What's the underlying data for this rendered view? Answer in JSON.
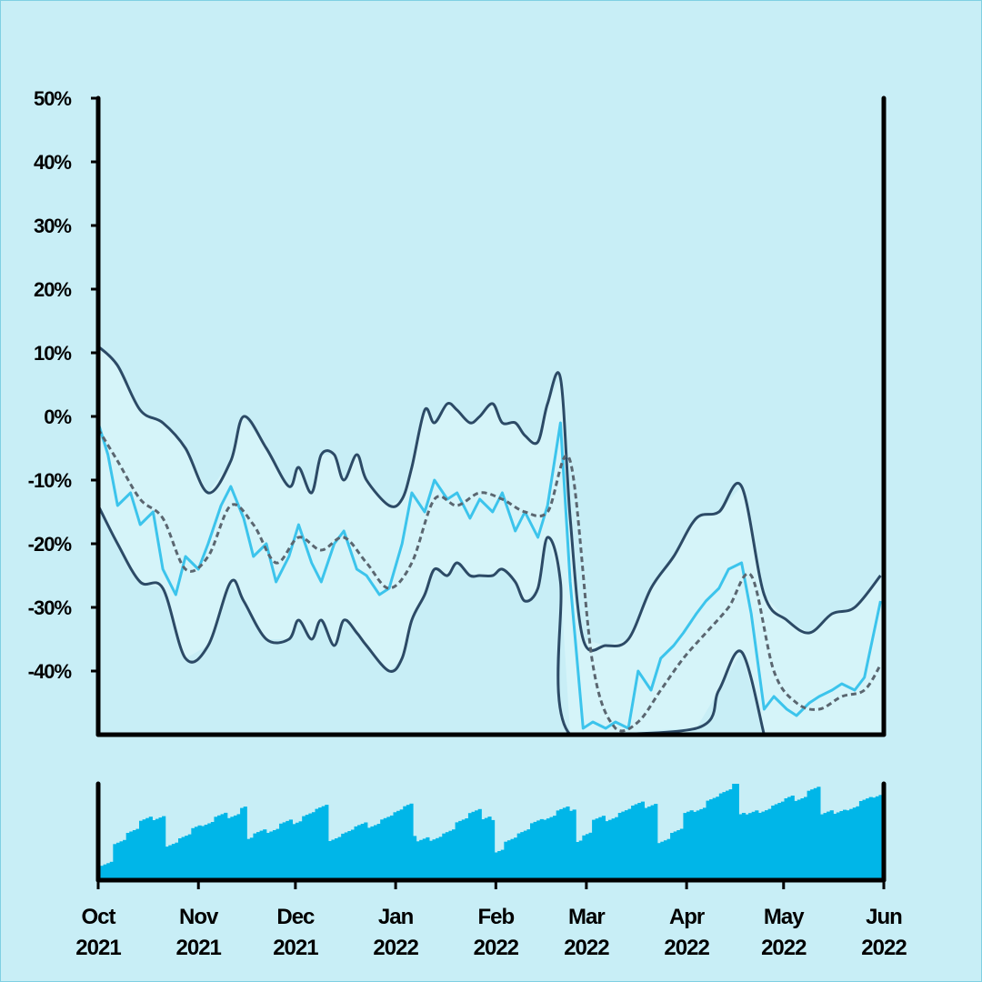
{
  "chart_data": {
    "type": "line",
    "y_range": [
      -50,
      50
    ],
    "y_ticks": [
      "50%",
      "40%",
      "30%",
      "20%",
      "10%",
      "0%",
      "-10%",
      "-20%",
      "-30%",
      "-40%"
    ],
    "y_tick_values": [
      50,
      40,
      30,
      20,
      10,
      0,
      -10,
      -20,
      -30,
      -40
    ],
    "x_range": [
      "2021-10-01",
      "2022-06-01"
    ],
    "x_ticks": [
      {
        "month": "Oct",
        "year": "2021",
        "date": "2021-10-01"
      },
      {
        "month": "Nov",
        "year": "2021",
        "date": "2021-11-01"
      },
      {
        "month": "Dec",
        "year": "2021",
        "date": "2021-12-01"
      },
      {
        "month": "Jan",
        "year": "2022",
        "date": "2022-01-01"
      },
      {
        "month": "Feb",
        "year": "2022",
        "date": "2022-02-01"
      },
      {
        "month": "Mar",
        "year": "2022",
        "date": "2022-03-01"
      },
      {
        "month": "Apr",
        "year": "2022",
        "date": "2022-04-01"
      },
      {
        "month": "May",
        "year": "2022",
        "date": "2022-05-01"
      },
      {
        "month": "Jun",
        "year": "2022",
        "date": "2022-06-01"
      }
    ],
    "series": [
      {
        "role": "price",
        "color": "#3cc4ec",
        "values": [
          [
            "2021-10-01",
            -1
          ],
          [
            "2021-10-04",
            -6
          ],
          [
            "2021-10-07",
            -14
          ],
          [
            "2021-10-11",
            -12
          ],
          [
            "2021-10-14",
            -17
          ],
          [
            "2021-10-18",
            -15
          ],
          [
            "2021-10-21",
            -24
          ],
          [
            "2021-10-25",
            -28
          ],
          [
            "2021-10-28",
            -22
          ],
          [
            "2021-11-01",
            -24
          ],
          [
            "2021-11-04",
            -20
          ],
          [
            "2021-11-08",
            -14
          ],
          [
            "2021-11-11",
            -11
          ],
          [
            "2021-11-15",
            -16
          ],
          [
            "2021-11-18",
            -22
          ],
          [
            "2021-11-22",
            -20
          ],
          [
            "2021-11-25",
            -26
          ],
          [
            "2021-11-29",
            -22
          ],
          [
            "2021-12-02",
            -17
          ],
          [
            "2021-12-06",
            -23
          ],
          [
            "2021-12-09",
            -26
          ],
          [
            "2021-12-13",
            -20
          ],
          [
            "2021-12-16",
            -18
          ],
          [
            "2021-12-20",
            -24
          ],
          [
            "2021-12-23",
            -25
          ],
          [
            "2021-12-27",
            -28
          ],
          [
            "2021-12-30",
            -27
          ],
          [
            "2022-01-03",
            -20
          ],
          [
            "2022-01-06",
            -12
          ],
          [
            "2022-01-10",
            -15
          ],
          [
            "2022-01-13",
            -10
          ],
          [
            "2022-01-17",
            -13
          ],
          [
            "2022-01-20",
            -12
          ],
          [
            "2022-01-24",
            -16
          ],
          [
            "2022-01-27",
            -13
          ],
          [
            "2022-01-31",
            -15
          ],
          [
            "2022-02-03",
            -12
          ],
          [
            "2022-02-07",
            -18
          ],
          [
            "2022-02-10",
            -15
          ],
          [
            "2022-02-14",
            -19
          ],
          [
            "2022-02-17",
            -14
          ],
          [
            "2022-02-21",
            -1
          ],
          [
            "2022-02-24",
            -26
          ],
          [
            "2022-02-28",
            -49
          ],
          [
            "2022-03-03",
            -48
          ],
          [
            "2022-03-07",
            -49
          ],
          [
            "2022-03-10",
            -48
          ],
          [
            "2022-03-14",
            -49
          ],
          [
            "2022-03-17",
            -40
          ],
          [
            "2022-03-21",
            -43
          ],
          [
            "2022-03-24",
            -38
          ],
          [
            "2022-03-28",
            -36
          ],
          [
            "2022-03-31",
            -34
          ],
          [
            "2022-04-04",
            -31
          ],
          [
            "2022-04-07",
            -29
          ],
          [
            "2022-04-11",
            -27
          ],
          [
            "2022-04-14",
            -24
          ],
          [
            "2022-04-18",
            -23
          ],
          [
            "2022-04-21",
            -31
          ],
          [
            "2022-04-25",
            -46
          ],
          [
            "2022-04-28",
            -44
          ],
          [
            "2022-05-02",
            -46
          ],
          [
            "2022-05-05",
            -47
          ],
          [
            "2022-05-09",
            -45
          ],
          [
            "2022-05-12",
            -44
          ],
          [
            "2022-05-16",
            -43
          ],
          [
            "2022-05-19",
            -42
          ],
          [
            "2022-05-23",
            -43
          ],
          [
            "2022-05-26",
            -41
          ],
          [
            "2022-05-31",
            -29
          ]
        ]
      },
      {
        "role": "moving-average",
        "color": "#5a6670",
        "dashed": true,
        "values": [
          [
            "2021-10-01",
            -2
          ],
          [
            "2021-10-07",
            -7
          ],
          [
            "2021-10-14",
            -13
          ],
          [
            "2021-10-21",
            -16
          ],
          [
            "2021-10-28",
            -24
          ],
          [
            "2021-11-04",
            -22
          ],
          [
            "2021-11-11",
            -14
          ],
          [
            "2021-11-18",
            -17
          ],
          [
            "2021-11-25",
            -23
          ],
          [
            "2021-12-02",
            -19
          ],
          [
            "2021-12-09",
            -21
          ],
          [
            "2021-12-16",
            -19
          ],
          [
            "2021-12-23",
            -23
          ],
          [
            "2021-12-30",
            -27
          ],
          [
            "2022-01-06",
            -23
          ],
          [
            "2022-01-13",
            -13
          ],
          [
            "2022-01-20",
            -14
          ],
          [
            "2022-01-27",
            -12
          ],
          [
            "2022-02-03",
            -13
          ],
          [
            "2022-02-10",
            -15
          ],
          [
            "2022-02-17",
            -15
          ],
          [
            "2022-02-24",
            -7
          ],
          [
            "2022-03-03",
            -39
          ],
          [
            "2022-03-10",
            -49
          ],
          [
            "2022-03-17",
            -48
          ],
          [
            "2022-03-24",
            -43
          ],
          [
            "2022-03-31",
            -38
          ],
          [
            "2022-04-07",
            -34
          ],
          [
            "2022-04-14",
            -30
          ],
          [
            "2022-04-21",
            -25
          ],
          [
            "2022-04-28",
            -40
          ],
          [
            "2022-05-05",
            -45
          ],
          [
            "2022-05-12",
            -46
          ],
          [
            "2022-05-19",
            -44
          ],
          [
            "2022-05-26",
            -43
          ],
          [
            "2022-05-31",
            -39
          ]
        ]
      },
      {
        "role": "upper-band",
        "color": "#2c4a66",
        "values": [
          [
            "2021-10-01",
            11
          ],
          [
            "2021-10-07",
            8
          ],
          [
            "2021-10-14",
            1
          ],
          [
            "2021-10-21",
            -1
          ],
          [
            "2021-10-28",
            -5
          ],
          [
            "2021-11-04",
            -12
          ],
          [
            "2021-11-11",
            -7
          ],
          [
            "2021-11-15",
            0
          ],
          [
            "2021-11-22",
            -5
          ],
          [
            "2021-11-29",
            -11
          ],
          [
            "2021-12-02",
            -8
          ],
          [
            "2021-12-06",
            -12
          ],
          [
            "2021-12-09",
            -6
          ],
          [
            "2021-12-13",
            -6
          ],
          [
            "2021-12-16",
            -10
          ],
          [
            "2021-12-20",
            -6
          ],
          [
            "2021-12-23",
            -10
          ],
          [
            "2021-12-30",
            -14
          ],
          [
            "2022-01-03",
            -13
          ],
          [
            "2022-01-06",
            -8
          ],
          [
            "2022-01-10",
            1
          ],
          [
            "2022-01-13",
            -1
          ],
          [
            "2022-01-17",
            2
          ],
          [
            "2022-01-20",
            1
          ],
          [
            "2022-01-24",
            -1
          ],
          [
            "2022-01-27",
            0
          ],
          [
            "2022-01-31",
            2
          ],
          [
            "2022-02-03",
            -1
          ],
          [
            "2022-02-07",
            -1
          ],
          [
            "2022-02-10",
            -3
          ],
          [
            "2022-02-14",
            -4
          ],
          [
            "2022-02-17",
            2
          ],
          [
            "2022-02-21",
            6
          ],
          [
            "2022-02-24",
            -16
          ],
          [
            "2022-02-28",
            -35
          ],
          [
            "2022-03-07",
            -36
          ],
          [
            "2022-03-14",
            -35
          ],
          [
            "2022-03-21",
            -27
          ],
          [
            "2022-03-28",
            -22
          ],
          [
            "2022-04-04",
            -16
          ],
          [
            "2022-04-11",
            -15
          ],
          [
            "2022-04-18",
            -11
          ],
          [
            "2022-04-25",
            -28
          ],
          [
            "2022-05-02",
            -32
          ],
          [
            "2022-05-09",
            -34
          ],
          [
            "2022-05-16",
            -31
          ],
          [
            "2022-05-23",
            -30
          ],
          [
            "2022-05-31",
            -25
          ]
        ]
      },
      {
        "role": "lower-band",
        "color": "#2c4a66",
        "values": [
          [
            "2021-10-01",
            -14
          ],
          [
            "2021-10-07",
            -20
          ],
          [
            "2021-10-14",
            -26
          ],
          [
            "2021-10-21",
            -27
          ],
          [
            "2021-10-28",
            -38
          ],
          [
            "2021-11-04",
            -36
          ],
          [
            "2021-11-11",
            -26
          ],
          [
            "2021-11-15",
            -29
          ],
          [
            "2021-11-22",
            -35
          ],
          [
            "2021-11-29",
            -35
          ],
          [
            "2021-12-02",
            -32
          ],
          [
            "2021-12-06",
            -35
          ],
          [
            "2021-12-09",
            -32
          ],
          [
            "2021-12-13",
            -36
          ],
          [
            "2021-12-16",
            -32
          ],
          [
            "2021-12-20",
            -34
          ],
          [
            "2021-12-23",
            -36
          ],
          [
            "2021-12-30",
            -40
          ],
          [
            "2022-01-03",
            -38
          ],
          [
            "2022-01-06",
            -32
          ],
          [
            "2022-01-10",
            -28
          ],
          [
            "2022-01-13",
            -24
          ],
          [
            "2022-01-17",
            -25
          ],
          [
            "2022-01-20",
            -23
          ],
          [
            "2022-01-24",
            -25
          ],
          [
            "2022-01-27",
            -25
          ],
          [
            "2022-01-31",
            -25
          ],
          [
            "2022-02-03",
            -24
          ],
          [
            "2022-02-07",
            -26
          ],
          [
            "2022-02-10",
            -29
          ],
          [
            "2022-02-14",
            -27
          ],
          [
            "2022-02-17",
            -19
          ],
          [
            "2022-02-21",
            -26
          ],
          [
            "2022-02-24",
            -50
          ],
          [
            "2022-04-04",
            -49
          ],
          [
            "2022-04-11",
            -43
          ],
          [
            "2022-04-18",
            -37
          ],
          [
            "2022-04-25",
            -50
          ]
        ]
      }
    ],
    "volume": {
      "color": "#00b6e8",
      "note": "daily volume bars (no printed scale)",
      "relative_values": [
        0.25,
        0.42,
        0.48,
        0.55,
        0.5,
        0.52,
        0.55,
        0.6,
        0.58,
        0.62,
        0.55,
        0.6,
        0.63,
        0.58,
        0.62,
        0.56,
        0.6,
        0.62,
        0.58,
        0.6,
        0.62,
        0.55,
        0.58,
        0.6,
        0.62,
        0.55,
        0.5,
        0.52,
        0.58,
        0.62,
        0.5,
        0.45,
        0.52,
        0.55,
        0.6,
        0.58,
        0.62,
        0.56,
        0.6,
        0.72,
        0.65,
        0.68,
        0.7,
        0.62,
        0.55,
        0.6,
        0.75,
        0.72,
        0.78,
        0.8,
        0.85,
        0.82,
        0.78,
        0.8,
        0.82,
        0.75,
        0.8,
        0.85,
        0.8,
        0.78,
        0.82,
        0.8
      ]
    }
  }
}
